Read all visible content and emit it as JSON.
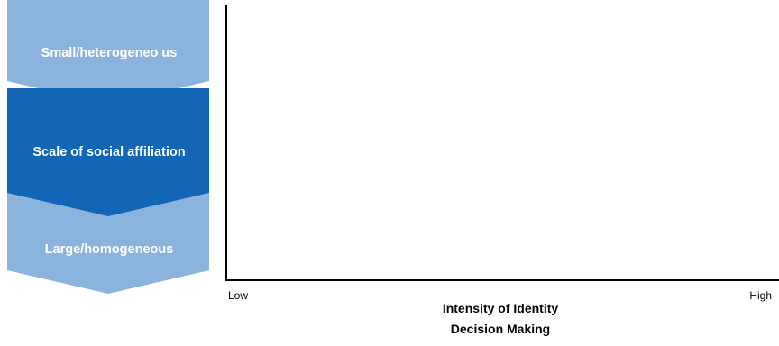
{
  "chevrons": {
    "top_label": "Small/heterogeneo us",
    "middle_label": "Scale of social affiliation",
    "bottom_label": "Large/homogeneous",
    "colors": {
      "light": "#8ab4dd",
      "dark": "#1266b5"
    }
  },
  "axis": {
    "low_label": "Low",
    "high_label": "High",
    "title_line1": "Intensity of Identity",
    "title_line2": "Decision Making"
  }
}
